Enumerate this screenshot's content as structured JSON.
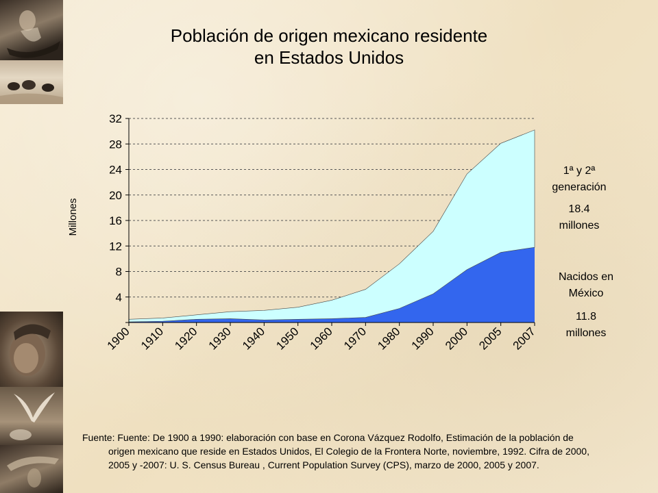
{
  "title_line1": "Población de origen mexicano residente",
  "title_line2": "en Estados Unidos",
  "annotations": {
    "gen_label_1": "1ª y 2ª",
    "gen_label_2": "generación",
    "gen_value": "18.4",
    "gen_unit": "millones",
    "born_label_1": "Nacidos en",
    "born_label_2": "México",
    "born_value": "11.8",
    "born_unit": "millones"
  },
  "source_line1": "Fuente: Fuente: De 1900 a 1990: elaboración con base en Corona Vázquez Rodolfo, Estimación de la población de",
  "source_line2": "origen mexicano que reside en Estados Unidos, El Colegio de la Frontera Norte, noviembre, 1992. Cifra de 2000,",
  "source_line3": "2005 y -2007:  U. S. Census Bureau , Current Population Survey (CPS), marzo de 2000, 2005 y 2007.",
  "chart_data": {
    "type": "area",
    "stacked": true,
    "ylabel": "Millones",
    "ylim": [
      0,
      32
    ],
    "yticks": [
      4,
      8,
      12,
      16,
      20,
      24,
      28,
      32
    ],
    "grid": "horizontal dashed",
    "categories": [
      "1900",
      "1910",
      "1920",
      "1930",
      "1940",
      "1950",
      "1960",
      "1970",
      "1980",
      "1990",
      "2000",
      "2005",
      "2007"
    ],
    "series": [
      {
        "values": [
          0.1,
          0.2,
          0.5,
          0.6,
          0.4,
          0.5,
          0.6,
          0.8,
          2.2,
          4.5,
          8.3,
          11.0,
          11.8
        ],
        "color": "#3366ee"
      },
      {
        "values": [
          0.4,
          0.5,
          0.7,
          1.1,
          1.5,
          1.9,
          2.9,
          4.4,
          7.0,
          9.8,
          15.0,
          17.1,
          18.4
        ],
        "color": "#ccffff"
      }
    ],
    "total": [
      0.5,
      0.7,
      1.2,
      1.7,
      1.9,
      2.4,
      3.5,
      5.2,
      9.2,
      14.3,
      23.3,
      28.1,
      30.2
    ]
  },
  "colors": {
    "background": "#f3e7cc",
    "born_in_mexico": "#3366ee",
    "generations": "#ccffff"
  },
  "decorations": [
    "photo-couple-boat",
    "photo-people-desert",
    "photo-child-portrait",
    "photo-bird-wings",
    "photo-dancers"
  ]
}
